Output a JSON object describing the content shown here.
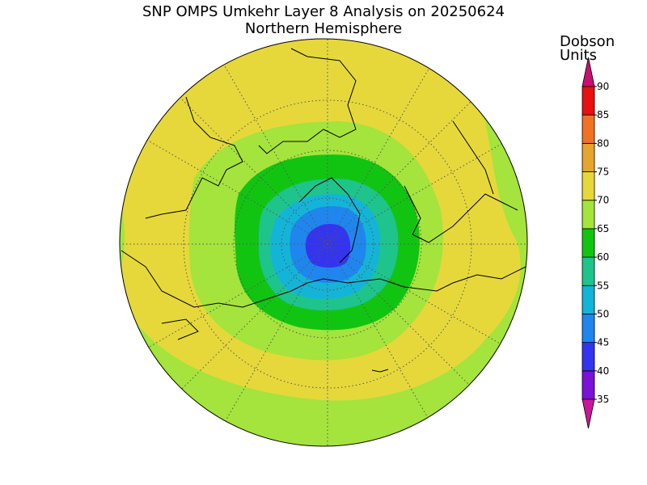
{
  "title": "SNP OMPS Umkehr Layer 8 Analysis on 20250624",
  "subtitle": "Northern Hemisphere",
  "colorbar": {
    "label": [
      "Dobson",
      "Units"
    ],
    "ticks": [
      35,
      40,
      45,
      50,
      55,
      60,
      65,
      70,
      75,
      80,
      85,
      90
    ],
    "colors": [
      "#7a12d8",
      "#3434f0",
      "#1f86ee",
      "#14b4d8",
      "#1ec48c",
      "#12c412",
      "#a4e43c",
      "#e6d83a",
      "#e6a430",
      "#f07224",
      "#e81010"
    ],
    "under_color": "#c81898",
    "over_color": "#c81070"
  }
}
